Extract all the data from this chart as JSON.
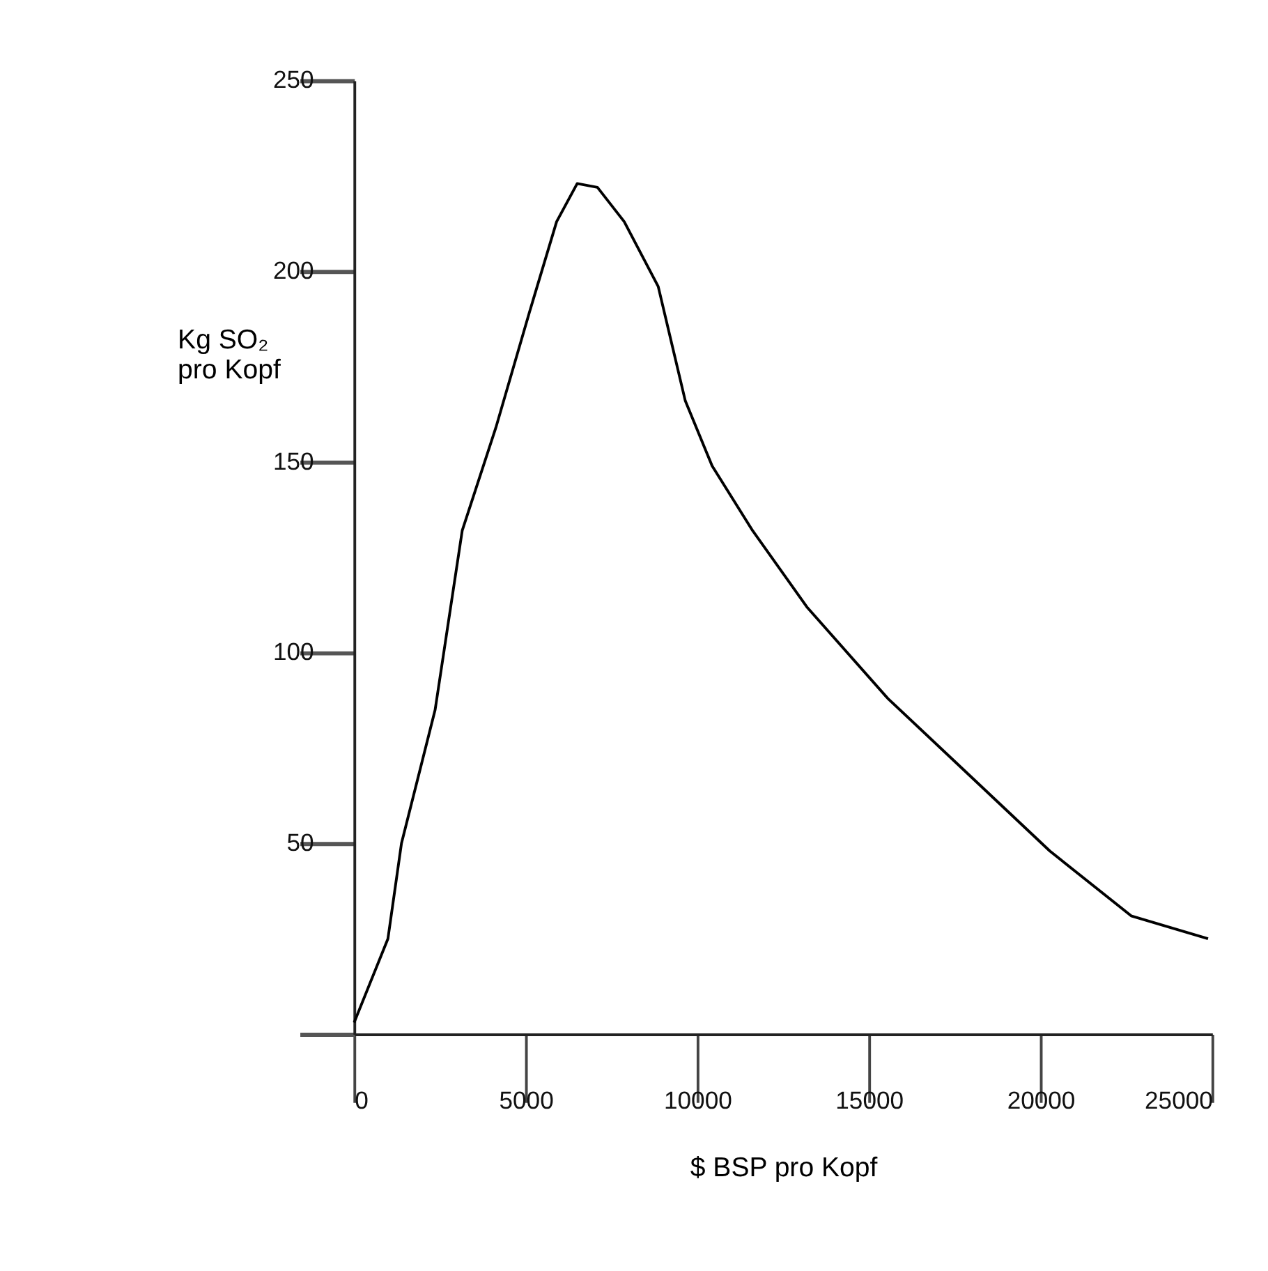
{
  "chart_data": {
    "type": "line",
    "xlabel": "$ BSP pro Kopf",
    "ylabel": "Kg SO₂\npro Kopf",
    "x": [
      0,
      985,
      1380,
      2360,
      3150,
      4130,
      5100,
      5900,
      6500,
      7090,
      7870,
      8860,
      9650,
      10430,
      11610,
      13190,
      15550,
      17910,
      20270,
      22640,
      24880
    ],
    "series": [
      {
        "color": "#000000",
        "values": [
          3,
          25,
          50,
          85,
          132,
          159,
          189,
          213,
          223,
          222,
          213,
          196,
          166,
          149,
          132,
          112,
          88,
          68,
          48,
          31,
          25
        ]
      }
    ],
    "xlim": [
      0,
      25000
    ],
    "ylim": [
      0,
      250
    ],
    "xticks": [
      0,
      5000,
      10000,
      15000,
      20000,
      25000
    ],
    "yticks": [
      {
        "value": 0,
        "label": null
      },
      50,
      100,
      150,
      200,
      250
    ],
    "grid": false,
    "marker": "none",
    "line_style": "solid"
  }
}
